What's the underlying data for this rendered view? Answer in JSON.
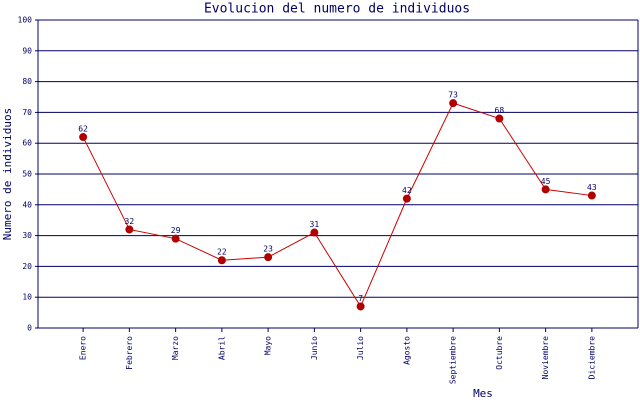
{
  "chart_data": {
    "type": "line",
    "title": "Evolucion del numero de individuos",
    "x_label": "Mes",
    "y_label": "Numero de individuos",
    "categories": [
      "Enero",
      "Febrero",
      "Marzo",
      "Abril",
      "Mayo",
      "Junio",
      "Julio",
      "Agosto",
      "Septiembre",
      "Octubre",
      "Noviembre",
      "Diciembre"
    ],
    "values": [
      62,
      32,
      29,
      22,
      23,
      31,
      7,
      42,
      73,
      68,
      45,
      43
    ],
    "color": "#cc0000",
    "marker_color": "#b00000",
    "ylim": [
      0,
      100
    ],
    "yticks": [
      0,
      10,
      20,
      30,
      40,
      50,
      60,
      70,
      80,
      90,
      100
    ],
    "grid": true
  }
}
